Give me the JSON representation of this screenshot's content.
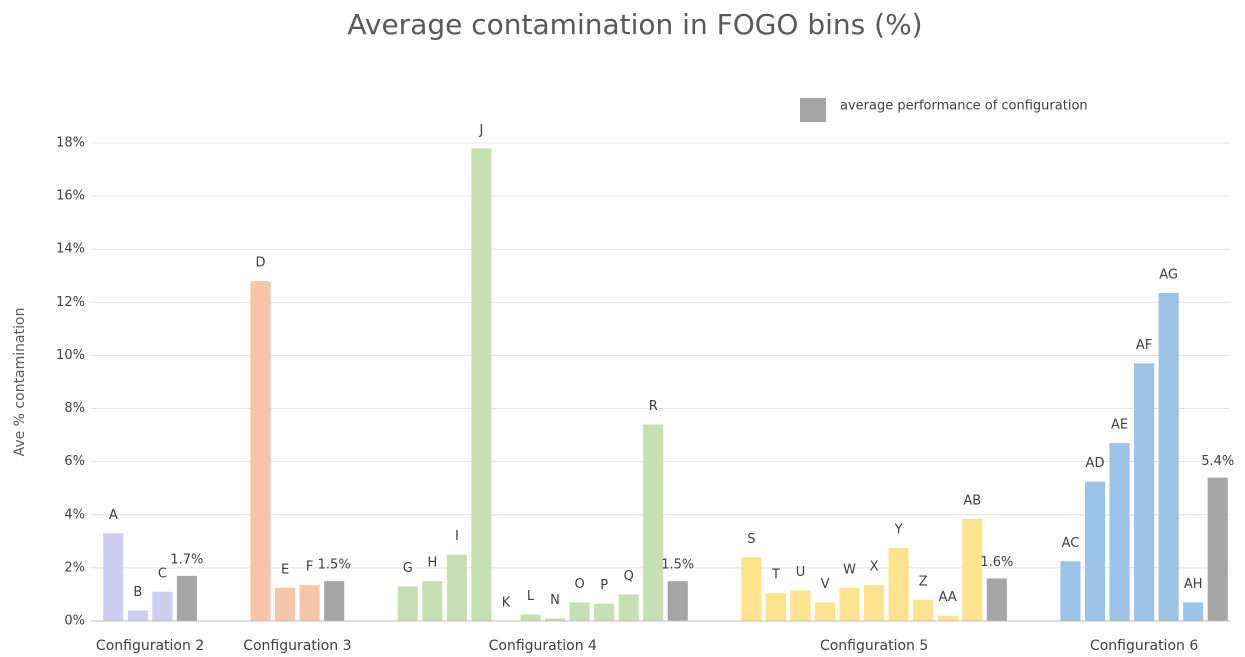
{
  "chart_data": {
    "type": "grouped_bar",
    "title": "Average contamination in FOGO bins (%)",
    "y_axis_label": "Ave % contamination",
    "legend": {
      "label": "average performance of configuration",
      "color": "#a5a5a5",
      "position": "top-right"
    },
    "ylim": [
      0,
      18
    ],
    "yticks": [
      {
        "value": 0,
        "label": "0%"
      },
      {
        "value": 2,
        "label": "2%"
      },
      {
        "value": 4,
        "label": "4%"
      },
      {
        "value": 6,
        "label": "6%"
      },
      {
        "value": 8,
        "label": "8%"
      },
      {
        "value": 10,
        "label": "10%"
      },
      {
        "value": 12,
        "label": "12%"
      },
      {
        "value": 14,
        "label": "14%"
      },
      {
        "value": 16,
        "label": "16%"
      },
      {
        "value": 18,
        "label": "18%"
      }
    ],
    "grid": true,
    "groups": [
      {
        "name": "Configuration 2",
        "color": "#cfcdf0",
        "categories": [
          "A",
          "B",
          "C"
        ],
        "values": [
          3.3,
          0.4,
          1.1
        ],
        "average": 1.7,
        "average_label": "1.7%"
      },
      {
        "name": "Configuration 3",
        "color": "#f7c6a8",
        "categories": [
          "D",
          "E",
          "F"
        ],
        "values": [
          12.8,
          1.25,
          1.35
        ],
        "average": 1.5,
        "average_label": "1.5%"
      },
      {
        "name": "Configuration 4",
        "color": "#c6e0b4",
        "categories": [
          "G",
          "H",
          "I",
          "J",
          "K",
          "L",
          "N",
          "O",
          "P",
          "Q",
          "R"
        ],
        "values": [
          1.3,
          1.5,
          2.5,
          17.8,
          0,
          0.25,
          0.1,
          0.7,
          0.65,
          1.0,
          7.4
        ],
        "average": 1.5,
        "average_label": "1.5%"
      },
      {
        "name": "Configuration 5",
        "color": "#ffe38f",
        "categories": [
          "S",
          "T",
          "U",
          "V",
          "W",
          "X",
          "Y",
          "Z",
          "AA",
          "AB"
        ],
        "values": [
          2.4,
          1.05,
          1.15,
          0.7,
          1.25,
          1.35,
          2.75,
          0.8,
          0.2,
          3.85
        ],
        "average": 1.6,
        "average_label": "1.6%"
      },
      {
        "name": "Configuration 6",
        "color": "#9dc3e6",
        "categories": [
          "AC",
          "AD",
          "AE",
          "AF",
          "AG",
          "AH"
        ],
        "values": [
          2.25,
          5.25,
          6.7,
          9.7,
          12.35,
          0.7
        ],
        "average": 5.4,
        "average_label": "5.4%"
      }
    ]
  }
}
